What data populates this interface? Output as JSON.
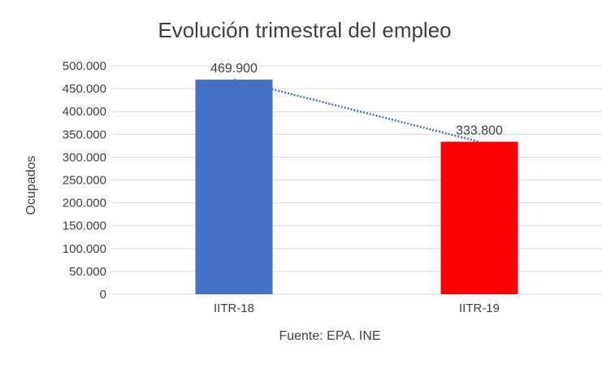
{
  "chart_data": {
    "type": "bar",
    "title": "Evolución trimestral del empleo",
    "xlabel": "Fuente: EPA. INE",
    "ylabel": "Ocupados",
    "categories": [
      "IITR-18",
      "IITR-19"
    ],
    "values": [
      469900,
      333800
    ],
    "data_labels": [
      "469.900",
      "333.800"
    ],
    "bar_colors": [
      "#4472c4",
      "#ff0000"
    ],
    "ylim": [
      0,
      500000
    ],
    "yticks": [
      {
        "value": 0,
        "label": "0"
      },
      {
        "value": 50000,
        "label": "50.000"
      },
      {
        "value": 100000,
        "label": "100.000"
      },
      {
        "value": 150000,
        "label": "150.000"
      },
      {
        "value": 200000,
        "label": "200.000"
      },
      {
        "value": 250000,
        "label": "250.000"
      },
      {
        "value": 300000,
        "label": "300.000"
      },
      {
        "value": 350000,
        "label": "350.000"
      },
      {
        "value": 400000,
        "label": "400.000"
      },
      {
        "value": 450000,
        "label": "450.000"
      },
      {
        "value": 500000,
        "label": "500.000"
      }
    ],
    "grid": true,
    "legend": "none",
    "trendline": {
      "type": "linear",
      "style": "dotted",
      "color": "#4a6fb8"
    }
  }
}
